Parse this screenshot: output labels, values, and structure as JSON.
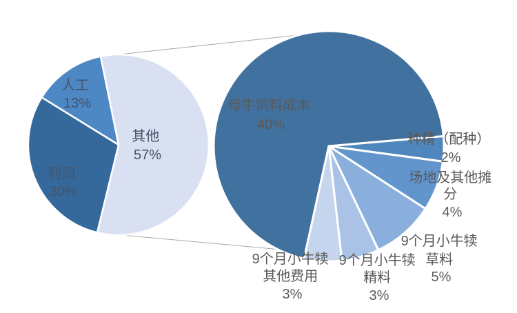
{
  "chart_data": {
    "type": "pie",
    "subtype": "pie-of-pie",
    "background": "#ffffff",
    "connector_color": "#a8a8a8",
    "legend": "none",
    "grid": "off",
    "primary": {
      "label_color": "#44546a",
      "start_angle_deg": 348.5,
      "slices": [
        {
          "label": "其他",
          "pct": "57%",
          "value": 57,
          "color": "#d9e0f1"
        },
        {
          "label": "利润",
          "pct": "30%",
          "value": 30,
          "color": "#35689b"
        },
        {
          "label": "人工",
          "pct": "13%",
          "value": 13,
          "color": "#4d88c4"
        }
      ]
    },
    "secondary": {
      "label_color": "#595959",
      "start_angle_deg": 192.4,
      "breakdown_of": "其他",
      "slices": [
        {
          "label": "母牛饲料成本",
          "pct": "40%",
          "value": 40,
          "color": "#41719f"
        },
        {
          "label": "种精（配种）",
          "pct": "2%",
          "value": 2,
          "color": "#4f86bd"
        },
        {
          "label": "场地及其他摊分",
          "pct": "4%",
          "value": 4,
          "color": "#6295cb"
        },
        {
          "label": "9个月小牛犊草料",
          "pct": "5%",
          "value": 5,
          "color": "#8aafdc"
        },
        {
          "label": "9个月小牛犊精料",
          "pct": "3%",
          "value": 3,
          "color": "#a9c2e6"
        },
        {
          "label": "9个月小牛犊其他费用",
          "pct": "3%",
          "value": 3,
          "color": "#c6d5ee"
        }
      ]
    }
  },
  "labels": {
    "labor": {
      "lines": [
        "人工",
        "13%"
      ]
    },
    "other": {
      "lines": [
        "其他",
        "57%"
      ]
    },
    "profit": {
      "lines": [
        "利润",
        "30%"
      ]
    },
    "cow_feed": {
      "lines": [
        "母牛饲料成本",
        "40%"
      ]
    },
    "semen": {
      "lines": [
        "种精（配种）",
        "2%"
      ]
    },
    "site": {
      "lines": [
        "场地及其他摊",
        "分",
        "4%"
      ]
    },
    "forage": {
      "lines": [
        "9个月小牛犊",
        "草料",
        "5%"
      ]
    },
    "concentrate": {
      "lines": [
        "9个月小牛犊",
        "精料",
        "3%"
      ]
    },
    "other_costs": {
      "lines": [
        "9个月小牛犊",
        "其他费用",
        "3%"
      ]
    }
  }
}
